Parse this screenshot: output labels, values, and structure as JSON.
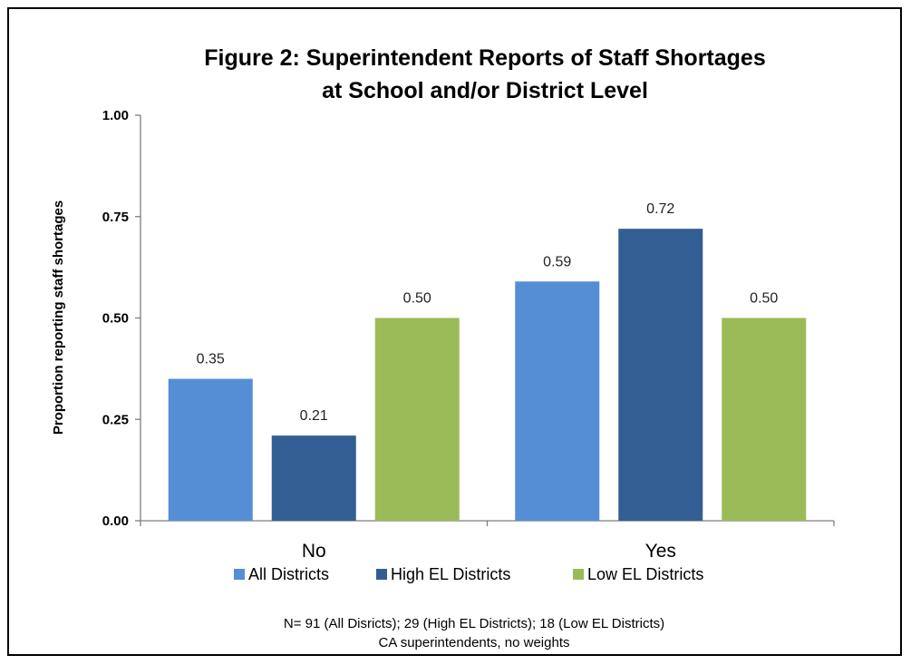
{
  "chart_data": {
    "type": "bar",
    "title_lines": [
      "Figure 2: Superintendent Reports of Staff Shortages",
      "at School and/or District Level"
    ],
    "ylabel": "Proportion reporting staff shortages",
    "xlabel": "",
    "categories": [
      "No",
      "Yes"
    ],
    "series": [
      {
        "name": "All Districts",
        "color": "#558ED5",
        "values": [
          0.35,
          0.59
        ]
      },
      {
        "name": "High EL Districts",
        "color": "#335E93",
        "values": [
          0.21,
          0.72
        ]
      },
      {
        "name": "Low EL Districts",
        "color": "#9BBB59",
        "values": [
          0.5,
          0.5
        ]
      }
    ],
    "data_labels": [
      [
        "0.35",
        "0.59"
      ],
      [
        "0.21",
        "0.72"
      ],
      [
        "0.50",
        "0.50"
      ]
    ],
    "ylim": [
      0,
      1
    ],
    "yticks": [
      0,
      0.25,
      0.5,
      0.75,
      1
    ],
    "ytick_labels": [
      "0.00",
      "0.25",
      "0.50",
      "0.75",
      "1.00"
    ],
    "grid": false,
    "legend_position": "bottom"
  },
  "notes": [
    "N= 91 (All Disricts); 29 (High EL Districts); 18 (Low EL Districts)",
    "CA superintendents, no weights"
  ]
}
